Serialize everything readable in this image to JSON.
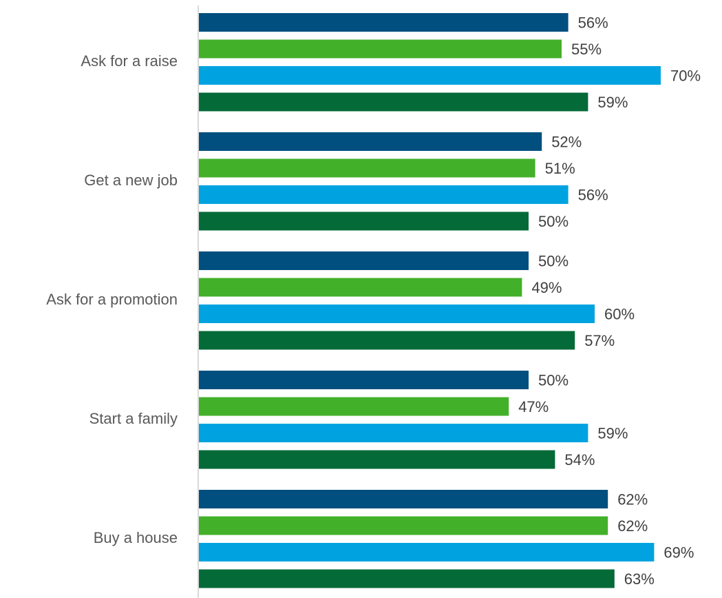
{
  "chart_data": {
    "type": "bar",
    "orientation": "horizontal",
    "categories": [
      "Ask for a raise",
      "Get a new job",
      "Ask for a promotion",
      "Start a family",
      "Buy a house"
    ],
    "series": [
      {
        "color": "#004f7f",
        "values": [
          56,
          52,
          50,
          50,
          62
        ],
        "labels": [
          "56%",
          "52%",
          "50%",
          "50%",
          "62%"
        ]
      },
      {
        "color": "#43b02a",
        "values": [
          55,
          51,
          49,
          47,
          62
        ],
        "labels": [
          "55%",
          "51%",
          "49%",
          "47%",
          "62%"
        ]
      },
      {
        "color": "#00a3e0",
        "values": [
          70,
          56,
          60,
          59,
          69
        ],
        "labels": [
          "70%",
          "56%",
          "60%",
          "59%",
          "69%"
        ]
      },
      {
        "color": "#046a38",
        "values": [
          59,
          50,
          57,
          54,
          63
        ],
        "labels": [
          "59%",
          "50%",
          "57%",
          "54%",
          "63%"
        ]
      }
    ],
    "value_unit": "%",
    "xlim": [
      0,
      70
    ],
    "grid": false,
    "legend": "none"
  }
}
